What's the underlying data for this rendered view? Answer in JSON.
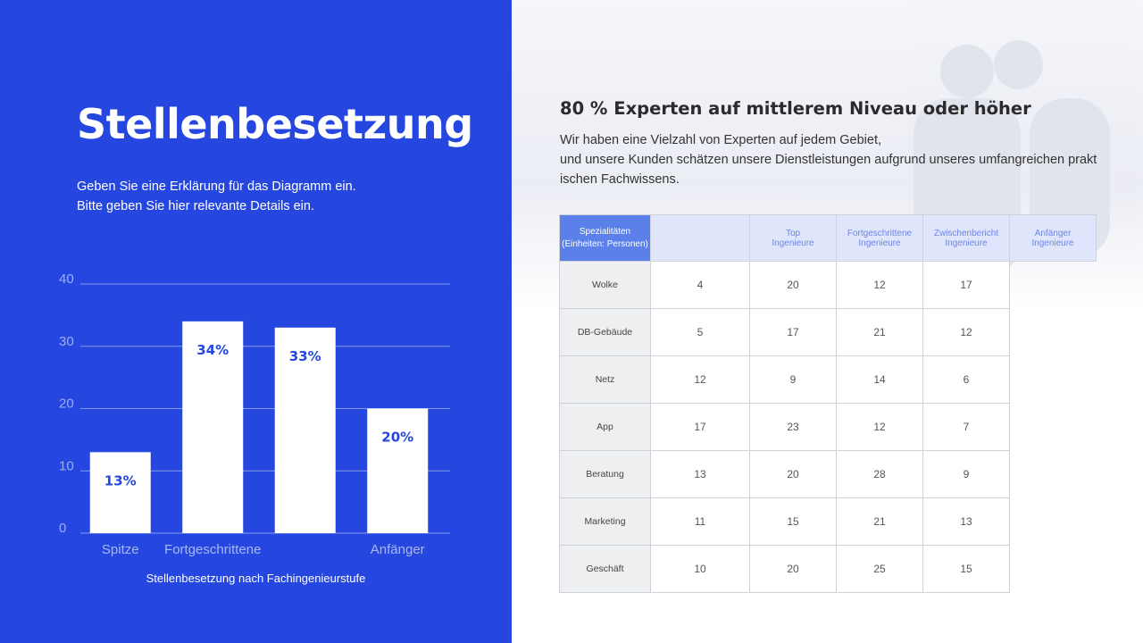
{
  "left_panel": {
    "title": "Stellenbesetzung",
    "description": [
      "Geben Sie eine Erklärung für das Diagramm ein.",
      "Bitte geben Sie hier relevante Details ein."
    ],
    "caption": "Stellenbesetzung nach Fachingenieurstufe"
  },
  "chart_data": {
    "type": "bar",
    "categories": [
      "Spitze",
      "Fortgeschrittene",
      "",
      "Anfänger"
    ],
    "values": [
      13,
      34,
      33,
      20
    ],
    "data_labels": [
      "13%",
      "34%",
      "33%",
      "20%"
    ],
    "yticks": [
      0,
      10,
      20,
      30,
      40
    ],
    "ylim": [
      0,
      40
    ],
    "grid": true,
    "bar_color": "#ffffff",
    "label_color": "#2547e0"
  },
  "right_panel": {
    "heading": "80 % Experten auf mittlerem Niveau oder höher",
    "text": [
      "Wir haben eine Vielzahl von Experten auf jedem Gebiet,",
      "und unsere Kunden schätzen unsere Dienstleistungen aufgrund unseres umfangreichen prakt",
      "ischen Fachwissens."
    ]
  },
  "table": {
    "side_label": [
      "Spezialitäten",
      "(Einheiten: Personen)"
    ],
    "columns": [
      [
        "Top",
        "Ingenieure"
      ],
      [
        "Fortgeschrittene",
        "Ingenieure"
      ],
      [
        "Zwischenbericht",
        "Ingenieure"
      ],
      [
        "Anfänger",
        "Ingenieure"
      ]
    ],
    "rows": [
      {
        "label": "Wolke",
        "values": [
          "4",
          "20",
          "12",
          "17"
        ]
      },
      {
        "label": "DB-Gebäude",
        "values": [
          "5",
          "17",
          "21",
          "12"
        ]
      },
      {
        "label": "Netz",
        "values": [
          "12",
          "9",
          "14",
          "6"
        ]
      },
      {
        "label": "App",
        "values": [
          "17",
          "23",
          "12",
          "7"
        ]
      },
      {
        "label": "Beratung",
        "values": [
          "13",
          "20",
          "28",
          "9"
        ]
      },
      {
        "label": "Marketing",
        "values": [
          "11",
          "15",
          "21",
          "13"
        ]
      },
      {
        "label": "Geschäft",
        "values": [
          "10",
          "20",
          "25",
          "15"
        ]
      }
    ]
  },
  "colors": {
    "primary_blue": "#2547e0",
    "table_side": "#5b80ea",
    "table_header": "#dfe5fb"
  }
}
